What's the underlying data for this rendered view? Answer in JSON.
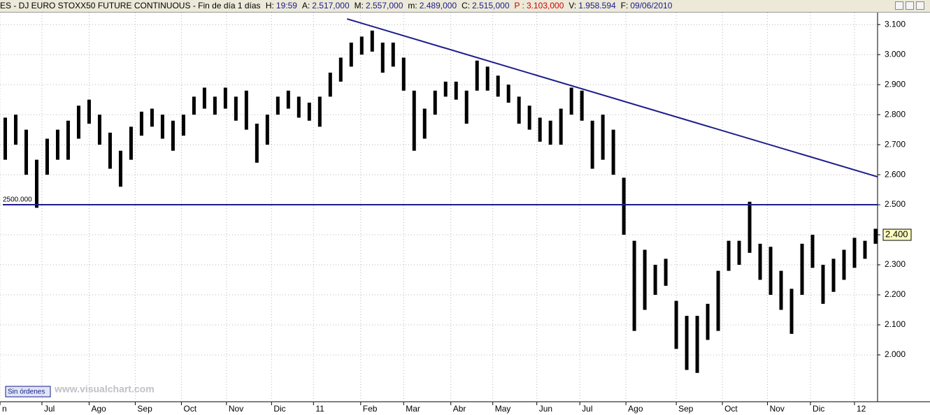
{
  "header": {
    "title": "ES - DJ EURO STOXX50 FUTURE CONTINUOUS - Fin de día 1 días",
    "fields": [
      {
        "label": "H:",
        "value": "19:59"
      },
      {
        "label": "A:",
        "value": "2.517,000"
      },
      {
        "label": "M:",
        "value": "2.557,000"
      },
      {
        "label": "m:",
        "value": "2.489,000"
      },
      {
        "label": "C:",
        "value": "2.515,000"
      },
      {
        "label": "P :",
        "value": "3.103,000"
      },
      {
        "label": "V:",
        "value": "1.958.594"
      },
      {
        "label": "F:",
        "value": "09/06/2010"
      }
    ]
  },
  "buttons": {
    "orders": "Sin órdenes"
  },
  "watermark": "www.visualchart.com",
  "chart_data": {
    "type": "hilo",
    "color": "#000000",
    "x": [
      0,
      1,
      2,
      3,
      4,
      5,
      6,
      7,
      8,
      9,
      10,
      11,
      12,
      13,
      14,
      15,
      16,
      17,
      18,
      19,
      20,
      21,
      22,
      23,
      24,
      25,
      26,
      27,
      28,
      29,
      30,
      31,
      32,
      33,
      34,
      35,
      36,
      37,
      38,
      39,
      40,
      41,
      42,
      43,
      44,
      45,
      46,
      47,
      48,
      49,
      50,
      51,
      52,
      53,
      54,
      55,
      56,
      57,
      58,
      59,
      60,
      61,
      62,
      63,
      64,
      65,
      66,
      67,
      68,
      69,
      70,
      71,
      72,
      73,
      74,
      75,
      76,
      77,
      78,
      79,
      80,
      81,
      82,
      83
    ],
    "high": [
      2790,
      2800,
      2750,
      2650,
      2720,
      2750,
      2780,
      2830,
      2850,
      2800,
      2740,
      2680,
      2760,
      2810,
      2820,
      2800,
      2780,
      2800,
      2860,
      2890,
      2860,
      2890,
      2860,
      2880,
      2770,
      2800,
      2860,
      2880,
      2860,
      2840,
      2860,
      2940,
      2990,
      3040,
      3060,
      3080,
      3040,
      3040,
      2990,
      2880,
      2820,
      2880,
      2910,
      2910,
      2880,
      2980,
      2960,
      2930,
      2900,
      2860,
      2830,
      2790,
      2780,
      2820,
      2890,
      2880,
      2780,
      2800,
      2750,
      2590,
      2380,
      2350,
      2300,
      2320,
      2180,
      2130,
      2130,
      2170,
      2280,
      2380,
      2380,
      2510,
      2370,
      2360,
      2280,
      2220,
      2370,
      2400,
      2300,
      2320,
      2350,
      2390,
      2380,
      2420
    ],
    "low": [
      2650,
      2700,
      2600,
      2490,
      2600,
      2650,
      2650,
      2720,
      2770,
      2700,
      2620,
      2560,
      2650,
      2730,
      2760,
      2720,
      2680,
      2730,
      2800,
      2820,
      2800,
      2820,
      2780,
      2750,
      2640,
      2700,
      2800,
      2820,
      2790,
      2780,
      2760,
      2860,
      2910,
      2960,
      3000,
      3010,
      2940,
      2960,
      2880,
      2680,
      2720,
      2800,
      2860,
      2850,
      2770,
      2880,
      2880,
      2860,
      2840,
      2770,
      2750,
      2710,
      2700,
      2700,
      2800,
      2780,
      2620,
      2650,
      2600,
      2400,
      2080,
      2150,
      2200,
      2230,
      2020,
      1950,
      1940,
      2050,
      2080,
      2280,
      2300,
      2340,
      2250,
      2200,
      2150,
      2070,
      2200,
      2290,
      2170,
      2210,
      2250,
      2290,
      2320,
      2370
    ],
    "xlim": [
      -0.5,
      83.2
    ],
    "ylim": [
      1844,
      3140
    ],
    "yticks": [
      {
        "value": 2000,
        "label": "2.000"
      },
      {
        "value": 2100,
        "label": "2.100"
      },
      {
        "value": 2200,
        "label": "2.200"
      },
      {
        "value": 2300,
        "label": "2.300"
      },
      {
        "value": 2400,
        "label": "2.400"
      },
      {
        "value": 2500,
        "label": "2.500"
      },
      {
        "value": 2600,
        "label": "2.600"
      },
      {
        "value": 2700,
        "label": "2.700"
      },
      {
        "value": 2800,
        "label": "2.800"
      },
      {
        "value": 2900,
        "label": "2.900"
      },
      {
        "value": 3000,
        "label": "3.000"
      },
      {
        "value": 3100,
        "label": "3.100"
      }
    ],
    "xticks": [
      {
        "value": -0.5,
        "label": "n"
      },
      {
        "value": 3.5,
        "label": "Jul"
      },
      {
        "value": 8.0,
        "label": "Ago"
      },
      {
        "value": 12.4,
        "label": "Sep"
      },
      {
        "value": 16.8,
        "label": "Oct"
      },
      {
        "value": 21.1,
        "label": "Nov"
      },
      {
        "value": 25.4,
        "label": "Dic"
      },
      {
        "value": 29.4,
        "label": "11"
      },
      {
        "value": 33.9,
        "label": "Feb"
      },
      {
        "value": 38.0,
        "label": "Mar"
      },
      {
        "value": 42.5,
        "label": "Abr"
      },
      {
        "value": 46.5,
        "label": "May"
      },
      {
        "value": 50.7,
        "label": "Jun"
      },
      {
        "value": 54.8,
        "label": "Jul"
      },
      {
        "value": 59.2,
        "label": "Ago"
      },
      {
        "value": 64.0,
        "label": "Sep"
      },
      {
        "value": 68.4,
        "label": "Oct"
      },
      {
        "value": 72.7,
        "label": "Nov"
      },
      {
        "value": 76.8,
        "label": "Dic"
      },
      {
        "value": 81.0,
        "label": "12"
      }
    ],
    "grid": true,
    "trendlines": [
      {
        "x": [
          32.6,
          83.2
        ],
        "y": [
          3119,
          2593
        ],
        "color": "#1c1c8c"
      }
    ],
    "hlines": [
      {
        "value": 2500,
        "label": "2500.000",
        "color": "#1c1c8c"
      }
    ],
    "last_price": {
      "value": 2400,
      "label": "2.400"
    }
  }
}
